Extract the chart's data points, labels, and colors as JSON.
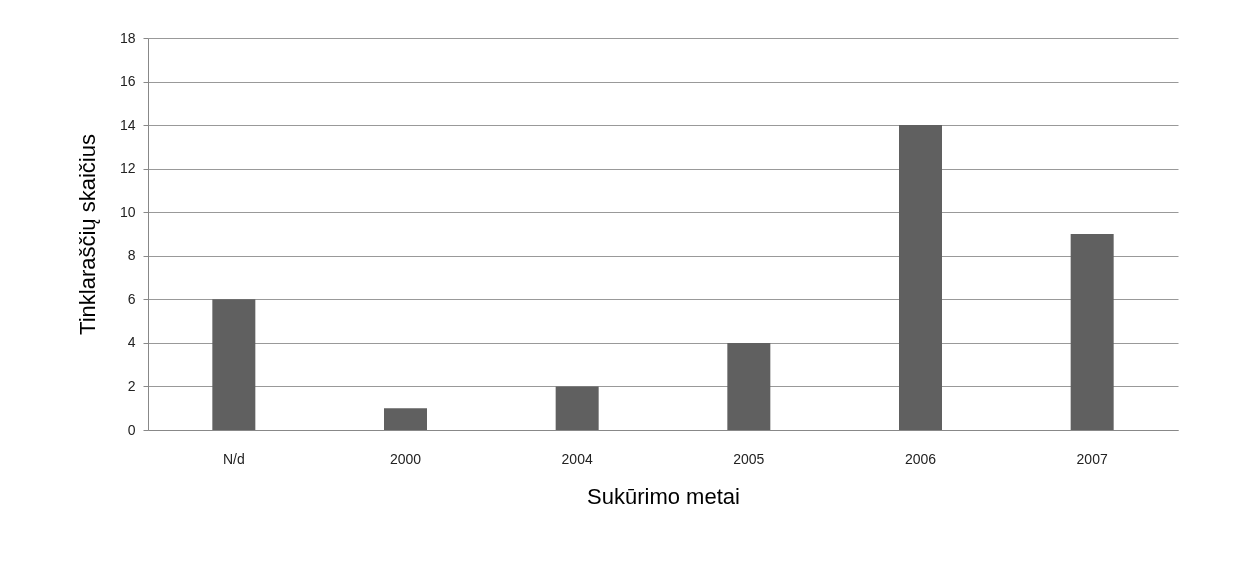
{
  "chart_data": {
    "type": "bar",
    "xlabel": "Sukūrimo metai",
    "ylabel": "Tinklaraščių skaičius",
    "categories": [
      "N/d",
      "2000",
      "2004",
      "2005",
      "2006",
      "2007"
    ],
    "values": [
      6,
      1,
      2,
      4,
      14,
      9
    ],
    "color": "#606060",
    "ylim": [
      0,
      18
    ],
    "yticks": [
      0,
      2,
      4,
      6,
      8,
      10,
      12,
      14,
      16,
      18
    ],
    "grid": "y"
  }
}
